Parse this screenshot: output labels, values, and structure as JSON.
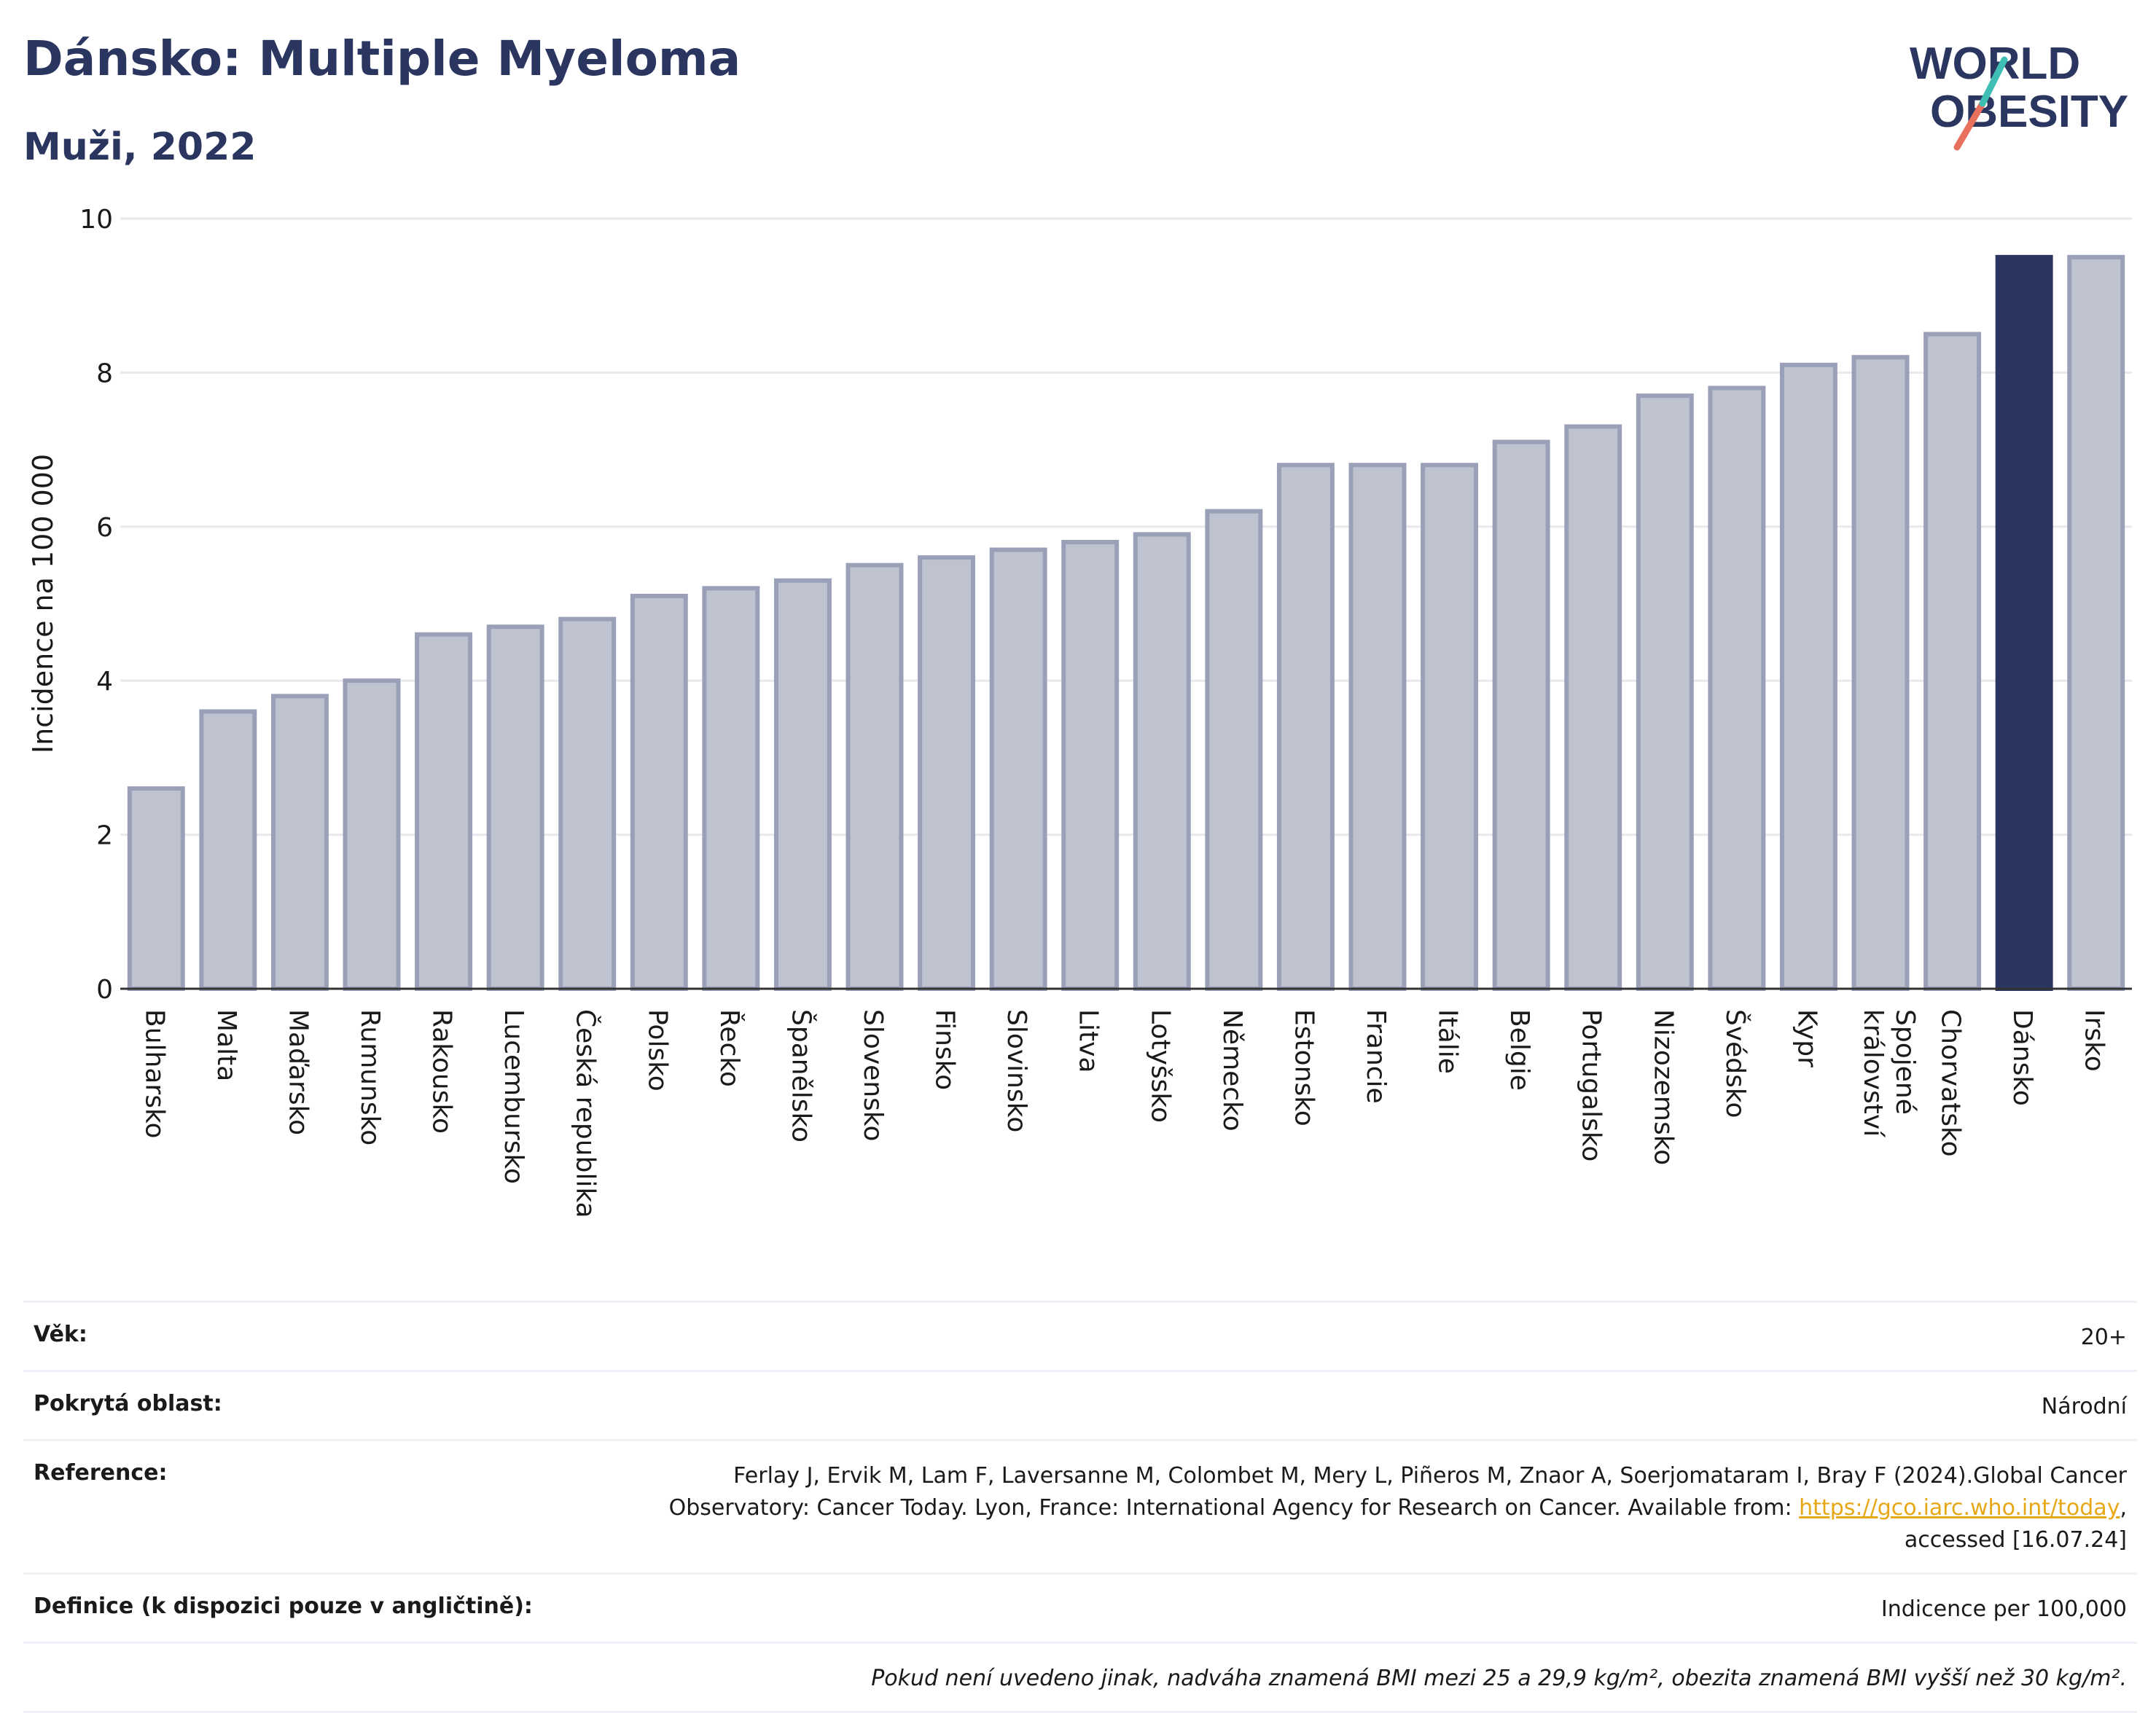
{
  "title": "Dánsko: Multiple Myeloma",
  "subtitle": "Muži, 2022",
  "logo": {
    "line1": "WORLD",
    "line2": "OBESITY"
  },
  "colors": {
    "bar": "#bfc3d0",
    "bar_stroke": "#9aa0b8",
    "highlight": "#2a3560",
    "title": "#2a3560",
    "link": "#e6a817",
    "grid": "#e8e8ee"
  },
  "chart_data": {
    "type": "bar",
    "ylabel": "Incidence na 100 000",
    "ylim": [
      0,
      10
    ],
    "yticks": [
      0,
      2,
      4,
      6,
      8,
      10
    ],
    "highlight": "Dánsko",
    "categories": [
      "Bulharsko",
      "Malta",
      "Maďarsko",
      "Rumunsko",
      "Rakousko",
      "Lucembursko",
      "Česká republika",
      "Polsko",
      "Řecko",
      "Španělsko",
      "Slovensko",
      "Finsko",
      "Slovinsko",
      "Litva",
      "Lotyšsko",
      "Německo",
      "Estonsko",
      "Francie",
      "Itálie",
      "Belgie",
      "Portugalsko",
      "Nizozemsko",
      "Švédsko",
      "Kypr",
      "Spojené království",
      "Chorvatsko",
      "Dánsko",
      "Irsko"
    ],
    "values": [
      2.6,
      3.6,
      3.8,
      4.0,
      4.6,
      4.7,
      4.8,
      5.1,
      5.2,
      5.3,
      5.5,
      5.6,
      5.7,
      5.8,
      5.9,
      6.2,
      6.8,
      6.8,
      6.8,
      7.1,
      7.3,
      7.7,
      7.8,
      8.1,
      8.2,
      8.5,
      9.5,
      9.5
    ]
  },
  "meta": {
    "age_label": "Věk:",
    "age_value": "20+",
    "area_label": "Pokrytá oblast:",
    "area_value": "Národní",
    "ref_label": "Reference:",
    "ref_line1": "Ferlay J, Ervik M, Lam F, Laversanne M, Colombet M, Mery L, Piñeros M, Znaor A, Soerjomataram I, Bray F (2024).Global Cancer",
    "ref_line2": "Observatory: Cancer Today. Lyon, France: International Agency for Research on Cancer. Available from: ",
    "ref_link": "https://gco.iarc.who.int/today",
    "ref_line2_end": ",",
    "ref_line3": "accessed [16.07.24]",
    "def_label": "Definice (k dispozici pouze v angličtině):",
    "def_value": "Indicence per 100,000",
    "note": "Pokud není uvedeno jinak, nadváha znamená BMI mezi 25 a 29,9 kg/m², obezita znamená BMI vyšší než 30 kg/m²."
  }
}
